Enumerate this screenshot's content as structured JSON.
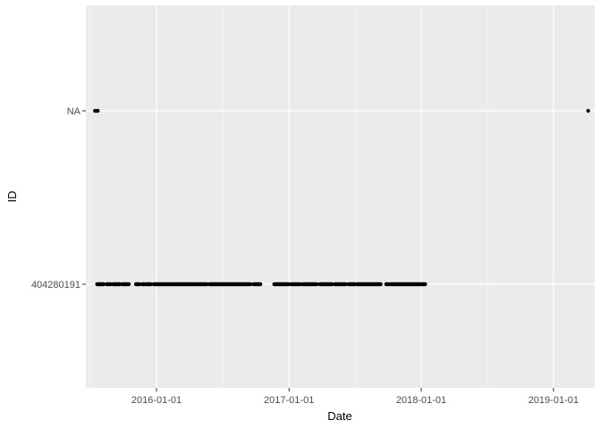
{
  "chart_data": {
    "type": "scatter",
    "title": "",
    "xlabel": "Date",
    "ylabel": "ID",
    "x_axis_type": "date",
    "xlim": [
      "2015-06-20",
      "2019-04-25"
    ],
    "x_ticks": [
      "2016-01-01",
      "2017-01-01",
      "2018-01-01",
      "2019-01-01"
    ],
    "y_axis_type": "categorical",
    "y_categories": [
      "404280191",
      "NA"
    ],
    "grid": true,
    "legend": "none",
    "colors": {
      "panel_background": "#ebebeb",
      "grid_major": "#ffffff",
      "grid_minor": "#f4f4f4",
      "point": "#000000",
      "tick_text": "#4d4d4d",
      "axis_title": "#000000"
    },
    "series": [
      {
        "category": "NA",
        "points": [
          "2015-07-15",
          "2015-07-19",
          "2015-07-23",
          "2019-04-07"
        ]
      },
      {
        "category": "404280191",
        "segments": [
          [
            "2015-07-21",
            "2015-08-08"
          ],
          [
            "2015-08-16",
            "2015-08-28"
          ],
          [
            "2015-09-03",
            "2015-09-22"
          ],
          [
            "2015-09-28",
            "2015-10-17"
          ],
          [
            "2015-11-05",
            "2015-11-15"
          ],
          [
            "2015-11-22",
            "2015-11-29"
          ],
          [
            "2015-12-03",
            "2015-12-17"
          ],
          [
            "2015-12-24",
            "2016-05-20"
          ],
          [
            "2016-05-26",
            "2016-09-17"
          ],
          [
            "2016-09-25",
            "2016-10-14"
          ],
          [
            "2016-11-21",
            "2017-01-01"
          ],
          [
            "2017-01-07",
            "2017-02-01"
          ],
          [
            "2017-02-07",
            "2017-03-19"
          ],
          [
            "2017-03-27",
            "2017-04-30"
          ],
          [
            "2017-05-07",
            "2017-06-07"
          ],
          [
            "2017-06-14",
            "2017-07-02"
          ],
          [
            "2017-07-07",
            "2017-09-11"
          ],
          [
            "2017-09-26",
            "2017-10-03"
          ],
          [
            "2017-10-08",
            "2018-01-12"
          ]
        ]
      }
    ]
  }
}
